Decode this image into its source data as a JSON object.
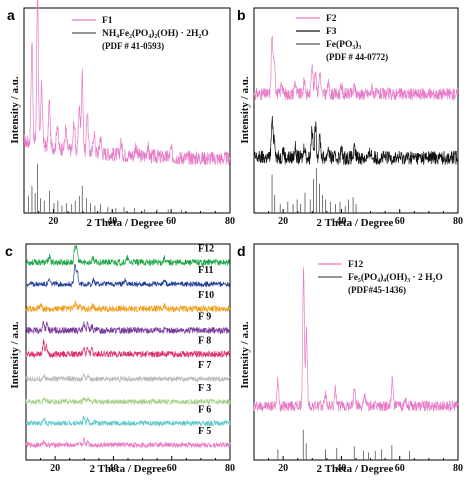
{
  "chart_data": [
    {
      "panel": "a",
      "type": "line",
      "xlabel": "2 Theta / Degree",
      "ylabel": "Intensity / a.u.",
      "xlim": [
        10,
        80
      ],
      "xticks": [
        20,
        40,
        60,
        80
      ],
      "legend": {
        "placement": "top-right",
        "entries": [
          {
            "text": "F1",
            "color": "#e87bc8",
            "kind": "line"
          },
          {
            "text": "NH₄Fe₂(PO₄)₂(OH) · 2H₂O",
            "color": "#555555",
            "kind": "line"
          },
          {
            "text": "(PDF # 41-0593)",
            "color": "",
            "kind": "text"
          }
        ]
      },
      "series": [
        {
          "name": "F1",
          "color": "#e87bc8",
          "baseline": 0.26,
          "background_start": 0.35,
          "noise": 0.035,
          "peaks": [
            [
              12.7,
              0.5
            ],
            [
              14.6,
              0.75
            ],
            [
              16.0,
              0.3
            ],
            [
              18.6,
              0.22
            ],
            [
              21.3,
              0.12
            ],
            [
              24.2,
              0.1
            ],
            [
              27.0,
              0.14
            ],
            [
              28.8,
              0.22
            ],
            [
              29.8,
              0.38
            ],
            [
              31.5,
              0.2
            ],
            [
              33.8,
              0.1
            ],
            [
              36.0,
              0.08
            ],
            [
              43.0,
              0.06
            ],
            [
              48.0,
              0.05
            ],
            [
              52.0,
              0.05
            ],
            [
              60.0,
              0.04
            ]
          ]
        }
      ],
      "reference_sticks": {
        "name": "NH₄Fe₂(PO₄)₂(OH) · 2H₂O",
        "color": "#555555",
        "positions": [
          [
            11.5,
            0.35
          ],
          [
            12.7,
            0.55
          ],
          [
            13.8,
            0.4
          ],
          [
            14.6,
            1.0
          ],
          [
            15.6,
            0.3
          ],
          [
            16.9,
            0.25
          ],
          [
            18.7,
            0.45
          ],
          [
            20.2,
            0.2
          ],
          [
            21.5,
            0.25
          ],
          [
            22.9,
            0.15
          ],
          [
            24.4,
            0.2
          ],
          [
            26.2,
            0.18
          ],
          [
            27.4,
            0.25
          ],
          [
            28.8,
            0.35
          ],
          [
            29.8,
            0.55
          ],
          [
            31.2,
            0.3
          ],
          [
            32.6,
            0.2
          ],
          [
            34.1,
            0.15
          ],
          [
            36.0,
            0.18
          ],
          [
            38.5,
            0.12
          ],
          [
            41.2,
            0.1
          ],
          [
            44.0,
            0.12
          ],
          [
            47.5,
            0.1
          ],
          [
            51.0,
            0.08
          ],
          [
            55.2,
            0.08
          ],
          [
            59.0,
            0.07
          ],
          [
            63.5,
            0.06
          ]
        ]
      }
    },
    {
      "panel": "b",
      "type": "line",
      "xlabel": "2 Theta / Degree",
      "ylabel": "Intensity / a.u.",
      "xlim": [
        10,
        80
      ],
      "xticks": [
        20,
        40,
        60,
        80
      ],
      "legend": {
        "placement": "top-right",
        "entries": [
          {
            "text": "F2",
            "color": "#e87bc8",
            "kind": "line"
          },
          {
            "text": "F3",
            "color": "#111111",
            "kind": "line"
          },
          {
            "text": "Fe(PO₃)₃",
            "color": "#555555",
            "kind": "line"
          },
          {
            "text": "(PDF # 44-0772)",
            "color": "",
            "kind": "text"
          }
        ]
      },
      "series": [
        {
          "name": "F2",
          "color": "#e87bc8",
          "offset": 0.58,
          "noise": 0.03,
          "peaks": [
            [
              16.2,
              0.28
            ],
            [
              17.0,
              0.18
            ],
            [
              19.5,
              0.06
            ],
            [
              24.1,
              0.06
            ],
            [
              27.3,
              0.07
            ],
            [
              29.9,
              0.16
            ],
            [
              31.1,
              0.12
            ],
            [
              32.6,
              0.11
            ],
            [
              35.5,
              0.05
            ],
            [
              40.0,
              0.04
            ],
            [
              44.5,
              0.04
            ],
            [
              50.5,
              0.03
            ]
          ]
        },
        {
          "name": "F3",
          "color": "#111111",
          "offset": 0.27,
          "noise": 0.035,
          "peaks": [
            [
              16.2,
              0.18
            ],
            [
              17.0,
              0.1
            ],
            [
              20.0,
              0.04
            ],
            [
              24.1,
              0.05
            ],
            [
              27.3,
              0.06
            ],
            [
              29.9,
              0.15
            ],
            [
              31.1,
              0.16
            ],
            [
              32.6,
              0.1
            ],
            [
              35.5,
              0.05
            ],
            [
              40.0,
              0.04
            ],
            [
              44.5,
              0.04
            ],
            [
              50.0,
              0.03
            ]
          ]
        }
      ],
      "reference_sticks": {
        "name": "Fe(PO₃)₃",
        "color": "#555555",
        "positions": [
          [
            16.2,
            0.85
          ],
          [
            17.1,
            0.4
          ],
          [
            19.0,
            0.2
          ],
          [
            21.6,
            0.25
          ],
          [
            23.4,
            0.2
          ],
          [
            24.8,
            0.3
          ],
          [
            26.0,
            0.2
          ],
          [
            27.5,
            0.45
          ],
          [
            29.3,
            0.3
          ],
          [
            30.4,
            0.75
          ],
          [
            31.4,
            1.0
          ],
          [
            32.5,
            0.65
          ],
          [
            33.5,
            0.4
          ],
          [
            34.6,
            0.3
          ],
          [
            36.2,
            0.25
          ],
          [
            38.0,
            0.2
          ],
          [
            39.5,
            0.25
          ],
          [
            41.3,
            0.15
          ],
          [
            42.4,
            0.3
          ],
          [
            44.0,
            0.35
          ],
          [
            45.0,
            0.2
          ]
        ]
      }
    },
    {
      "panel": "c",
      "type": "line",
      "xlabel": "2 Theta / Degree",
      "ylabel": "Intensity / a.u.",
      "xlim": [
        10,
        80
      ],
      "xticks": [
        20,
        40,
        60,
        80
      ],
      "series": [
        {
          "name": "F12",
          "color": "#1ea845",
          "offset": 0.915,
          "noise": 0.015,
          "peaks": [
            [
              18.0,
              0.03
            ],
            [
              26.8,
              0.08
            ],
            [
              27.5,
              0.06
            ],
            [
              33.0,
              0.02
            ],
            [
              44.8,
              0.02
            ],
            [
              57.5,
              0.02
            ]
          ]
        },
        {
          "name": "F11",
          "color": "#1f3f99",
          "offset": 0.815,
          "noise": 0.012,
          "peaks": [
            [
              18.0,
              0.02
            ],
            [
              26.8,
              0.09
            ],
            [
              27.6,
              0.06
            ],
            [
              33.2,
              0.02
            ],
            [
              44.0,
              0.02
            ],
            [
              57.5,
              0.02
            ]
          ]
        },
        {
          "name": "F10",
          "color": "#f0a020",
          "offset": 0.7,
          "noise": 0.015,
          "peaks": [
            [
              15.0,
              0.02
            ],
            [
              26.9,
              0.03
            ],
            [
              28.5,
              0.02
            ],
            [
              33.0,
              0.015
            ],
            [
              57.5,
              0.015
            ]
          ]
        },
        {
          "name": "F 9",
          "color": "#7a3a9a",
          "offset": 0.6,
          "noise": 0.015,
          "peaks": [
            [
              16.0,
              0.04
            ],
            [
              17.2,
              0.03
            ],
            [
              29.8,
              0.03
            ],
            [
              31.2,
              0.03
            ],
            [
              32.6,
              0.02
            ]
          ]
        },
        {
          "name": "F 8",
          "color": "#e0306a",
          "offset": 0.49,
          "noise": 0.015,
          "peaks": [
            [
              16.0,
              0.06
            ],
            [
              17.0,
              0.035
            ],
            [
              29.8,
              0.035
            ],
            [
              31.2,
              0.03
            ],
            [
              32.6,
              0.02
            ]
          ]
        },
        {
          "name": "F 7",
          "color": "#bbbbbb",
          "offset": 0.375,
          "noise": 0.012,
          "peaks": [
            [
              16.1,
              0.015
            ],
            [
              29.9,
              0.015
            ],
            [
              31.2,
              0.012
            ]
          ]
        },
        {
          "name": "F 3",
          "color": "#a8d08d",
          "offset": 0.27,
          "noise": 0.012,
          "peaks": [
            [
              16.2,
              0.02
            ],
            [
              29.9,
              0.02
            ],
            [
              31.2,
              0.015
            ]
          ]
        },
        {
          "name": "F 6",
          "color": "#5fc8c8",
          "offset": 0.17,
          "noise": 0.012,
          "peaks": [
            [
              16.2,
              0.02
            ],
            [
              29.9,
              0.03
            ],
            [
              31.2,
              0.02
            ],
            [
              33.5,
              0.01
            ]
          ]
        },
        {
          "name": "F 5",
          "color": "#e87bc8",
          "offset": 0.07,
          "noise": 0.012,
          "peaks": [
            [
              16.2,
              0.02
            ],
            [
              29.9,
              0.025
            ],
            [
              31.2,
              0.02
            ]
          ]
        }
      ]
    },
    {
      "panel": "d",
      "type": "line",
      "xlabel": "2 Theta / Degree",
      "ylabel": "Intensity / a.u.",
      "xlim": [
        10,
        80
      ],
      "xticks": [
        20,
        40,
        60,
        80
      ],
      "legend": {
        "placement": "top-right",
        "entries": [
          {
            "text": "F12",
            "color": "#e87bc8",
            "kind": "line"
          },
          {
            "text": "Fe₅(PO₄)₄(OH)₃ · 2 H₂O",
            "color": "#555555",
            "kind": "line"
          },
          {
            "text": "(PDF#45-1436)",
            "color": "",
            "kind": "text"
          }
        ]
      },
      "series": [
        {
          "name": "F12",
          "color": "#e87bc8",
          "baseline": 0.25,
          "noise": 0.025,
          "peaks": [
            [
              18.2,
              0.13
            ],
            [
              27.0,
              0.62
            ],
            [
              28.0,
              0.35
            ],
            [
              34.5,
              0.06
            ],
            [
              38.0,
              0.08
            ],
            [
              44.5,
              0.09
            ],
            [
              48.0,
              0.05
            ],
            [
              57.5,
              0.13
            ],
            [
              62.0,
              0.04
            ]
          ]
        }
      ],
      "reference_sticks": {
        "name": "Fe₅(PO₄)₄(OH)₃ · 2 H₂O",
        "color": "#555555",
        "positions": [
          [
            18.2,
            0.35
          ],
          [
            26.9,
            1.0
          ],
          [
            27.9,
            0.55
          ],
          [
            34.5,
            0.35
          ],
          [
            38.4,
            0.4
          ],
          [
            44.4,
            0.45
          ],
          [
            47.6,
            0.3
          ],
          [
            49.3,
            0.25
          ],
          [
            51.6,
            0.3
          ],
          [
            53.8,
            0.35
          ],
          [
            57.3,
            0.5
          ],
          [
            63.4,
            0.3
          ]
        ]
      }
    }
  ]
}
